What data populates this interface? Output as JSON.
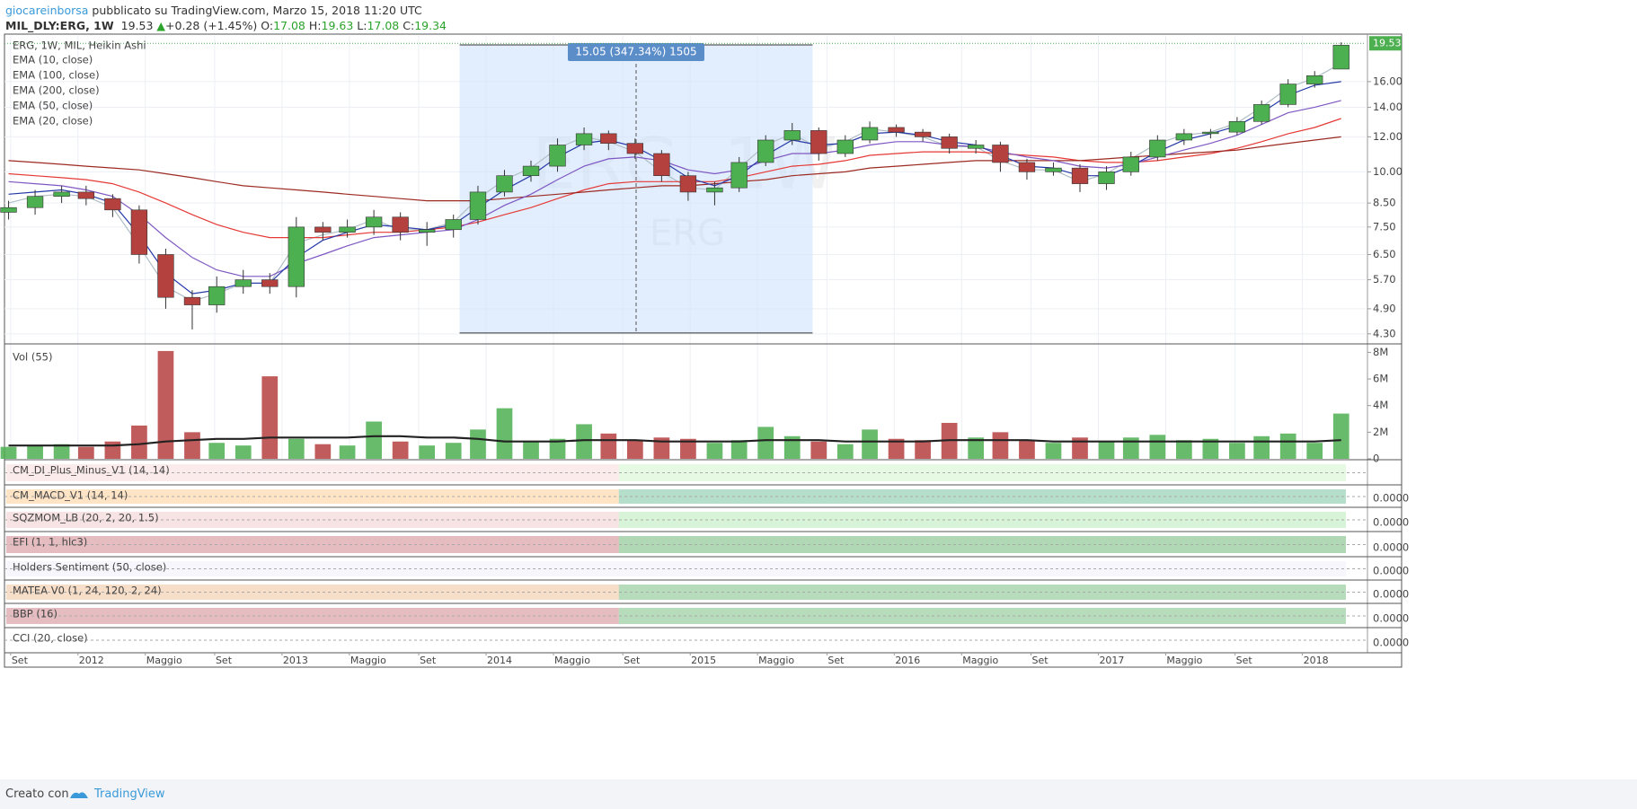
{
  "header": {
    "author": "giocareinborsa",
    "published": "pubblicato su TradingView.com, Marzo 15, 2018 11:20 UTC",
    "symbol": "MIL_DLY:ERG, 1W",
    "price": "19.53",
    "change": "+0.28 (+1.45%)",
    "o_label": "O:",
    "o": "17.08",
    "h_label": "H:",
    "h": "19.63",
    "l_label": "L:",
    "l": "17.08",
    "c_label": "C:",
    "c": "19.34"
  },
  "footer": {
    "made_with": "Creato con",
    "brand": "TradingView"
  },
  "chart_data": {
    "type": "candlestick",
    "title": "ERG, 1W, MIL, Heikin Ashi",
    "log_scale": true,
    "grid": true,
    "up_color": "#4caf50",
    "down_color": "#b5413f",
    "xlim": [
      2011.64,
      2018.31
    ],
    "ylim": [
      4.1,
      20.3
    ],
    "yticks": [
      {
        "value": 4.3,
        "label": "4.30"
      },
      {
        "value": 4.9,
        "label": "4.90"
      },
      {
        "value": 5.7,
        "label": "5.70"
      },
      {
        "value": 6.5,
        "label": "6.50"
      },
      {
        "value": 7.5,
        "label": "7.50"
      },
      {
        "value": 8.5,
        "label": "8.50"
      },
      {
        "value": 10,
        "label": "10.00"
      },
      {
        "value": 12,
        "label": "12.00"
      },
      {
        "value": 14,
        "label": "14.00"
      },
      {
        "value": 16,
        "label": "16.00"
      }
    ],
    "xticks": [
      {
        "value": 2011.67,
        "label": "Set"
      },
      {
        "value": 2012,
        "label": "2012"
      },
      {
        "value": 2012.33,
        "label": "Maggio"
      },
      {
        "value": 2012.67,
        "label": "Set"
      },
      {
        "value": 2013,
        "label": "2013"
      },
      {
        "value": 2013.33,
        "label": "Maggio"
      },
      {
        "value": 2013.67,
        "label": "Set"
      },
      {
        "value": 2014,
        "label": "2014"
      },
      {
        "value": 2014.33,
        "label": "Maggio"
      },
      {
        "value": 2014.67,
        "label": "Set"
      },
      {
        "value": 2015,
        "label": "2015"
      },
      {
        "value": 2015.33,
        "label": "Maggio"
      },
      {
        "value": 2015.67,
        "label": "Set"
      },
      {
        "value": 2016,
        "label": "2016"
      },
      {
        "value": 2016.33,
        "label": "Maggio"
      },
      {
        "value": 2016.67,
        "label": "Set"
      },
      {
        "value": 2017,
        "label": "2017"
      },
      {
        "value": 2017.33,
        "label": "Maggio"
      },
      {
        "value": 2017.67,
        "label": "Set"
      },
      {
        "value": 2018,
        "label": "2018"
      }
    ],
    "x": [
      2011.66,
      2011.79,
      2011.92,
      2012.04,
      2012.17,
      2012.3,
      2012.43,
      2012.56,
      2012.68,
      2012.81,
      2012.94,
      2013.07,
      2013.2,
      2013.32,
      2013.45,
      2013.58,
      2013.71,
      2013.84,
      2013.96,
      2014.09,
      2014.22,
      2014.35,
      2014.48,
      2014.6,
      2014.73,
      2014.86,
      2014.99,
      2015.12,
      2015.24,
      2015.37,
      2015.5,
      2015.63,
      2015.76,
      2015.88,
      2016.01,
      2016.14,
      2016.27,
      2016.4,
      2016.52,
      2016.65,
      2016.78,
      2016.91,
      2017.04,
      2017.16,
      2017.29,
      2017.42,
      2017.55,
      2017.68,
      2017.8,
      2017.93,
      2018.06,
      2018.19
    ],
    "open": [
      8.1,
      8.3,
      8.8,
      9.0,
      8.7,
      8.2,
      6.5,
      5.2,
      5.0,
      5.5,
      5.7,
      5.5,
      7.5,
      7.3,
      7.5,
      7.9,
      7.3,
      7.4,
      7.8,
      9.0,
      9.8,
      10.3,
      11.5,
      12.2,
      11.6,
      11.0,
      9.8,
      9.0,
      9.2,
      10.5,
      11.8,
      12.4,
      11.0,
      11.8,
      12.6,
      12.3,
      12.0,
      11.3,
      11.5,
      10.5,
      10.0,
      10.2,
      9.4,
      10.0,
      10.8,
      11.8,
      12.2,
      12.3,
      13.0,
      14.2,
      15.8,
      17.08
    ],
    "high": [
      8.6,
      9.1,
      9.3,
      9.3,
      8.9,
      8.4,
      6.7,
      5.4,
      5.8,
      6.0,
      5.9,
      7.9,
      7.7,
      7.8,
      8.2,
      8.1,
      7.7,
      8.0,
      9.3,
      10.1,
      10.6,
      11.9,
      12.6,
      12.4,
      11.9,
      11.2,
      10.0,
      9.5,
      10.8,
      12.1,
      12.9,
      12.6,
      12.1,
      13.0,
      12.8,
      12.5,
      12.2,
      11.8,
      11.7,
      10.7,
      10.5,
      10.4,
      10.3,
      11.1,
      12.1,
      12.5,
      12.5,
      13.3,
      14.5,
      16.2,
      16.9,
      19.63
    ],
    "low": [
      7.8,
      8.0,
      8.5,
      8.4,
      7.9,
      6.2,
      4.9,
      4.4,
      4.8,
      5.3,
      5.3,
      5.2,
      7.0,
      7.1,
      7.2,
      7.0,
      6.8,
      7.1,
      7.6,
      8.8,
      9.5,
      10.0,
      11.2,
      11.2,
      10.7,
      9.5,
      8.6,
      8.4,
      9.0,
      10.3,
      11.5,
      10.6,
      10.8,
      11.6,
      12.0,
      11.7,
      11.0,
      11.0,
      10.0,
      9.6,
      9.8,
      9.0,
      9.1,
      9.8,
      10.6,
      11.5,
      11.9,
      12.1,
      12.8,
      14.0,
      15.5,
      17.08
    ],
    "close": [
      8.3,
      8.8,
      9.0,
      8.7,
      8.2,
      6.5,
      5.2,
      5.0,
      5.5,
      5.7,
      5.5,
      7.5,
      7.3,
      7.5,
      7.9,
      7.3,
      7.4,
      7.8,
      9.0,
      9.8,
      10.3,
      11.5,
      12.2,
      11.6,
      11.0,
      9.8,
      9.0,
      9.2,
      10.5,
      11.8,
      12.4,
      11.0,
      11.8,
      12.6,
      12.3,
      12.0,
      11.3,
      11.5,
      10.5,
      10.0,
      10.2,
      9.4,
      10.0,
      10.8,
      11.8,
      12.2,
      12.3,
      13.0,
      14.2,
      15.8,
      16.5,
      19.34
    ],
    "series": [
      {
        "name": "EMA (10, close)",
        "color": "#b0bec5",
        "values": [
          8.5,
          8.8,
          8.9,
          8.8,
          8.3,
          6.8,
          5.5,
          5.1,
          5.3,
          5.6,
          5.6,
          6.9,
          7.2,
          7.4,
          7.8,
          7.4,
          7.4,
          7.7,
          8.7,
          9.6,
          10.2,
          11.3,
          12.0,
          11.7,
          11.1,
          10.0,
          9.2,
          9.1,
          10.2,
          11.5,
          12.2,
          11.3,
          11.7,
          12.5,
          12.3,
          12.0,
          11.4,
          11.4,
          10.6,
          10.1,
          10.1,
          9.5,
          9.9,
          10.7,
          11.6,
          12.1,
          12.3,
          12.9,
          14.0,
          15.5,
          16.3,
          17.6
        ]
      },
      {
        "name": "EMA (100, close)",
        "color": "#e53935",
        "values": [
          9.9,
          9.8,
          9.7,
          9.6,
          9.4,
          9.0,
          8.5,
          8.0,
          7.6,
          7.3,
          7.1,
          7.1,
          7.1,
          7.2,
          7.3,
          7.3,
          7.4,
          7.5,
          7.7,
          8.0,
          8.3,
          8.7,
          9.1,
          9.4,
          9.5,
          9.5,
          9.5,
          9.5,
          9.7,
          10.0,
          10.3,
          10.4,
          10.6,
          10.9,
          11.0,
          11.1,
          11.1,
          11.1,
          11.0,
          10.9,
          10.8,
          10.6,
          10.5,
          10.5,
          10.6,
          10.8,
          11.0,
          11.3,
          11.7,
          12.2,
          12.6,
          13.2
        ]
      },
      {
        "name": "EMA (200, close)",
        "color": "#9c2a22",
        "values": [
          10.6,
          10.5,
          10.4,
          10.3,
          10.2,
          10.1,
          9.9,
          9.7,
          9.5,
          9.3,
          9.2,
          9.1,
          9.0,
          8.9,
          8.8,
          8.7,
          8.6,
          8.6,
          8.6,
          8.7,
          8.8,
          8.9,
          9.0,
          9.1,
          9.2,
          9.3,
          9.3,
          9.4,
          9.5,
          9.6,
          9.8,
          9.9,
          10.0,
          10.2,
          10.3,
          10.4,
          10.5,
          10.6,
          10.6,
          10.6,
          10.6,
          10.6,
          10.7,
          10.8,
          10.9,
          11.0,
          11.1,
          11.2,
          11.4,
          11.6,
          11.8,
          12.0
        ]
      },
      {
        "name": "EMA (50, close)",
        "color": "#7e57c2",
        "values": [
          9.5,
          9.4,
          9.3,
          9.1,
          8.8,
          8.0,
          7.1,
          6.4,
          6.0,
          5.8,
          5.8,
          6.2,
          6.5,
          6.8,
          7.1,
          7.2,
          7.3,
          7.4,
          7.8,
          8.4,
          8.9,
          9.6,
          10.3,
          10.7,
          10.8,
          10.6,
          10.1,
          9.9,
          10.1,
          10.6,
          11.0,
          11.0,
          11.2,
          11.5,
          11.7,
          11.7,
          11.5,
          11.4,
          11.1,
          10.8,
          10.6,
          10.3,
          10.2,
          10.4,
          10.8,
          11.2,
          11.6,
          12.1,
          12.8,
          13.6,
          14.0,
          14.5
        ]
      },
      {
        "name": "EMA (20, close)",
        "color": "#2639a8",
        "values": [
          8.9,
          9.0,
          9.1,
          8.9,
          8.5,
          7.2,
          5.9,
          5.3,
          5.4,
          5.6,
          5.6,
          6.4,
          7.0,
          7.3,
          7.6,
          7.5,
          7.4,
          7.6,
          8.3,
          9.1,
          9.8,
          10.8,
          11.6,
          11.8,
          11.4,
          10.6,
          9.7,
          9.3,
          9.8,
          10.9,
          11.8,
          11.5,
          11.6,
          12.2,
          12.3,
          12.1,
          11.7,
          11.5,
          10.9,
          10.3,
          10.2,
          9.8,
          9.8,
          10.3,
          11.1,
          11.8,
          12.2,
          12.7,
          13.6,
          14.9,
          15.7,
          16.0
        ]
      }
    ],
    "last_price": 19.53,
    "last_price_label": "19.53",
    "measure": {
      "x": [
        2013.87,
        2015.6
      ],
      "y": [
        4.32,
        19.37
      ],
      "label": "15.05 (347.34%) 1505"
    },
    "watermark": [
      "ERG, 1W",
      "ERG"
    ],
    "volume": {
      "label": "Vol (55)",
      "ylim": [
        0,
        8500000
      ],
      "yticks": [
        0,
        {
          "value": 2000000,
          "label": "2M"
        },
        {
          "value": 4000000,
          "label": "4M"
        },
        {
          "value": 6000000,
          "label": "6M"
        },
        {
          "value": 8000000,
          "label": "8M"
        }
      ],
      "values": [
        900000,
        1000000,
        1100000,
        900000,
        1300000,
        2500000,
        8100000,
        2000000,
        1200000,
        1000000,
        6200000,
        1500000,
        1100000,
        1000000,
        2800000,
        1300000,
        1000000,
        1200000,
        2200000,
        3800000,
        1300000,
        1500000,
        2600000,
        1900000,
        1400000,
        1600000,
        1500000,
        1200000,
        1400000,
        2400000,
        1700000,
        1300000,
        1100000,
        2200000,
        1500000,
        1400000,
        2700000,
        1600000,
        2000000,
        1400000,
        1200000,
        1600000,
        1300000,
        1600000,
        1800000,
        1400000,
        1500000,
        1200000,
        1700000,
        1900000,
        1200000,
        3400000
      ],
      "ma": [
        1000000,
        1000000,
        1000000,
        1000000,
        1000000,
        1100000,
        1300000,
        1400000,
        1500000,
        1500000,
        1600000,
        1600000,
        1600000,
        1600000,
        1700000,
        1700000,
        1600000,
        1600000,
        1500000,
        1300000,
        1300000,
        1300000,
        1400000,
        1400000,
        1400000,
        1300000,
        1300000,
        1300000,
        1300000,
        1400000,
        1400000,
        1400000,
        1300000,
        1300000,
        1300000,
        1300000,
        1400000,
        1400000,
        1400000,
        1400000,
        1300000,
        1300000,
        1300000,
        1300000,
        1300000,
        1300000,
        1300000,
        1300000,
        1300000,
        1300000,
        1300000,
        1400000
      ],
      "ma_color": "#222222"
    },
    "indicators": [
      {
        "label": "CM_DI_Plus_Minus_V1 (14, 14)"
      },
      {
        "label": "CM_MACD_V1 (14, 14)",
        "tick_label": "0.0000"
      },
      {
        "label": "SQZMOM_LB (20, 2, 20, 1.5)",
        "tick_label": "0.0000"
      },
      {
        "label": "EFI (1, 1, hlc3)",
        "tick_label": "0.0000"
      },
      {
        "label": "Holders Sentiment (50, close)",
        "tick_label": "0.0000"
      },
      {
        "label": "MATEA V0 (1, 24, 120, 2, 24)",
        "tick_label": "0.0000"
      },
      {
        "label": "BBP (16)",
        "tick_label": "0.0000"
      },
      {
        "label": "CCI (20, close)",
        "tick_label": "0.0000"
      }
    ]
  }
}
